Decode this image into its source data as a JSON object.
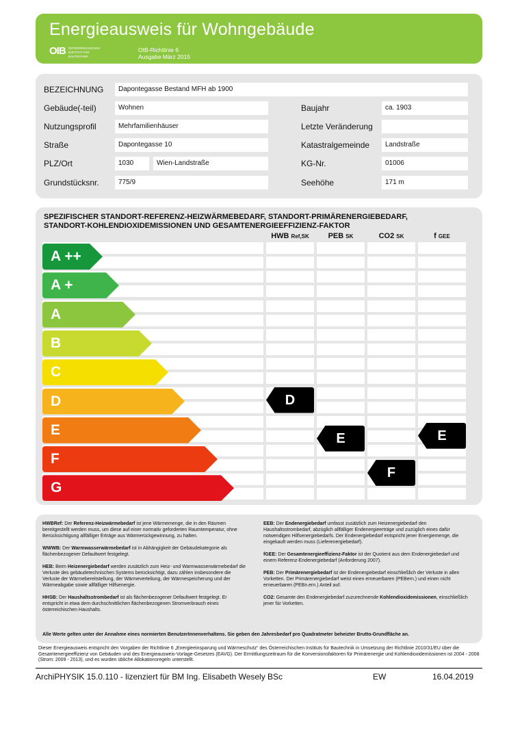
{
  "header": {
    "title": "Energieausweis für Wohngebäude",
    "logo": "OIB",
    "logo_sub": "ÖSTERREICHISCHES INSTITUT FÜR BAUTECHNIK",
    "richtlinie": "OIB-Richtlinie 6",
    "ausgabe": "Ausgabe März 2015",
    "color": "#8dc63f"
  },
  "form": {
    "bezeichnung_label": "BEZEICHNUNG",
    "bezeichnung": "Dapontegasse Bestand MFH ab 1900",
    "gebaeude_label": "Gebäude(-teil)",
    "gebaeude": "Wohnen",
    "nutzung_label": "Nutzungsprofil",
    "nutzung": "Mehrfamilienhäuser",
    "strasse_label": "Straße",
    "strasse": "Dapontegasse 10",
    "plz_label": "PLZ/Ort",
    "plz": "1030",
    "ort": "Wien-Landstraße",
    "grund_label": "Grundstücksnr.",
    "grund": "775/9",
    "baujahr_label": "Baujahr",
    "baujahr": "ca. 1903",
    "veraenderung_label": "Letzte Veränderung",
    "veraenderung": "",
    "kg_label": "Katastralgemeinde",
    "kg": "Landstraße",
    "kgnr_label": "KG-Nr.",
    "kgnr": "01006",
    "seehoehe_label": "Seehöhe",
    "seehoehe": "171 m"
  },
  "rating": {
    "heading1": "SPEZIFISCHER STANDORT-REFERENZ-HEIZWÄRMEBEDARF, STANDORT-PRIMÄRENERGIEBEDARF,",
    "heading2": "STANDORT-KOHLENDIOXIDEMISSIONEN UND GESAMTENERGIEEFFIZIENZ-FAKTOR",
    "columns": [
      {
        "main": "HWB",
        "sub": "Ref,SK",
        "class": "D"
      },
      {
        "main": "PEB",
        "sub": "SK",
        "class": "E"
      },
      {
        "main": "CO2",
        "sub": "SK",
        "class": "F"
      },
      {
        "main": "f",
        "sub": "GEE",
        "class": "E"
      }
    ],
    "classes": [
      {
        "label": "A ++",
        "color": "#16973b"
      },
      {
        "label": "A +",
        "color": "#3fb44a"
      },
      {
        "label": "A",
        "color": "#8cc63f"
      },
      {
        "label": "B",
        "color": "#c8d92f"
      },
      {
        "label": "C",
        "color": "#f5df00"
      },
      {
        "label": "D",
        "color": "#f6b31b"
      },
      {
        "label": "E",
        "color": "#f07c13"
      },
      {
        "label": "F",
        "color": "#ec3b10"
      },
      {
        "label": "G",
        "color": "#e2131b"
      }
    ]
  },
  "defs": {
    "hwb_k": "HWBRef:",
    "hwb_b": "Referenz-Heizwärmebedarf",
    "hwb_pre": " Der ",
    "hwb_t": " ist jene Wärmemenge, die in den Räumen bereitgestellt werden muss, um diese auf einer normativ geforderten Raumtemperatur, ohne Berücksichtigung allfälliger Erträge aus Wärmerückgewinnung, zu halten.",
    "wwwb_k": "WWWB:",
    "wwwb_b": "Warmwasserwärmebedarf",
    "wwwb_pre": " Der ",
    "wwwb_t": " ist in Abhängigkeit der Gebäudekategorie als flächenbezogener Defaultwert festgelegt.",
    "heb_k": "HEB:",
    "heb_b": "Heizenergiebedarf",
    "heb_pre": " Beim ",
    "heb_t": " werden zusätzlich zum Heiz- und Warmwasserwärmebedarf die Verluste des gebäudetechnischen Systems berücksichtigt, dazu zählen insbesondere die Verluste der Wärmebereitstellung, der Wärmeverteilung, der Wärmespeicherung und der Wärmeabgabe sowie allfälliger Hilfsenergie.",
    "hhsb_k": "HHSB:",
    "hhsb_b": "Haushaltsstrombedarf",
    "hhsb_pre": " Der ",
    "hhsb_t": " ist als flächenbezogener Defaultwert festgelegt. Er entspricht in etwa dem durchschnittlichen flächenbezogenen Stromverbrauch eines österreichischen Haushalts.",
    "eeb_k": "EEB:",
    "eeb_b": "Endenergiebedarf",
    "eeb_pre": " Der ",
    "eeb_t": " umfasst zusätzlich zum Heizenergiebedarf den Haushaltsstrombedarf, abzüglich allfälliger Endenergieerträge und zuzüglich eines dafür notwendigen Hilfsenergiebedarfs. Der Endenergiebedarf entspricht jener Energiemenge, die eingekauft werden muss (Lieferenergiebedarf).",
    "fgee_k": "fGEE:",
    "fgee_b": "Gesamtenergieeffizienz-Faktor",
    "fgee_pre": " Der ",
    "fgee_t": " ist der Quotient aus dem Endenergiebedarf und einem Referenz-Endenergiebedarf (Anforderung 2007).",
    "peb_k": "PEB:",
    "peb_b": "Primärenergiebedarf",
    "peb_pre": " Der ",
    "peb_t": " ist der Endenergiebedarf einschließlich der Verluste in allen Vorketten. Der Primärenergiebedarf weist einen erneuerbaren (PEBern.) und einen nicht erneuerbaren (PEBn.ern.) Anteil auf.",
    "co2_k": "CO2:",
    "co2_pre": " Gesamte den Endenergiebedarf zuzurechnende ",
    "co2_b": "Kohlendioxidemissionen",
    "co2_t": ", einschließlich jener für Vorketten.",
    "note": "Alle Werte gelten unter der Annahme eines normierten BenutzerInnenverhaltens. Sie geben den Jahresbedarf pro Quadratmeter beheizter Brutto-Grundfläche an."
  },
  "footnote": "Dieser Energieausweis entspricht den Vorgaben der Richtlinie 6 „Energieeinsparung und Wärmeschutz“ des Österreichischen Instituts für Bautechnik in Umsetzung der Richtlinie 2010/31/EU über die Gesamtenergieeffizienz von Gebäuden und des Energieausweis-Vorlage-Gesetzes (EAVG). Der Ermittlungszeitraum für die Konversionsfaktoren für Primärenergie und Kohlendioxidemissionen ist 2004 - 2008 (Strom: 2009 - 2013), und es wurden übliche Allokationsregeln unterstellt.",
  "footer": {
    "software": "ArchiPHYSIK 15.0.110 - lizenziert für BM Ing. Elisabeth Wesely BSc",
    "initials": "EW",
    "date": "16.04.2019"
  }
}
